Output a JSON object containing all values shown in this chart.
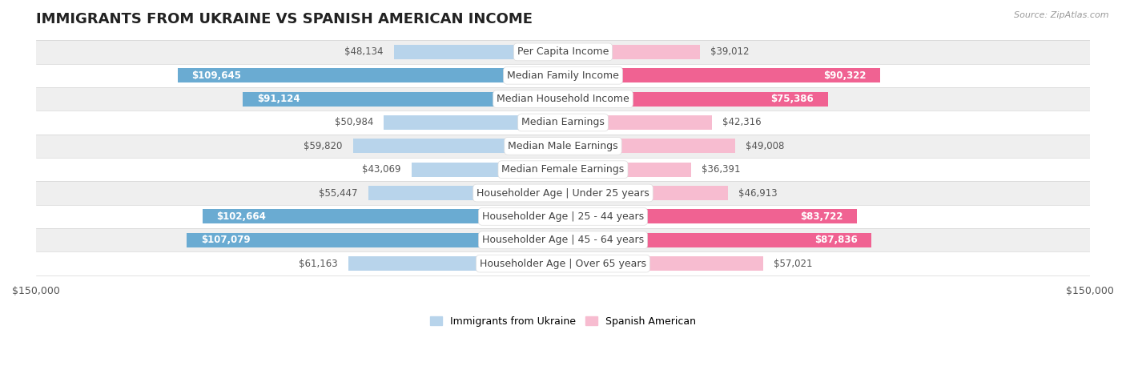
{
  "title": "IMMIGRANTS FROM UKRAINE VS SPANISH AMERICAN INCOME",
  "source": "Source: ZipAtlas.com",
  "categories": [
    "Per Capita Income",
    "Median Family Income",
    "Median Household Income",
    "Median Earnings",
    "Median Male Earnings",
    "Median Female Earnings",
    "Householder Age | Under 25 years",
    "Householder Age | 25 - 44 years",
    "Householder Age | 45 - 64 years",
    "Householder Age | Over 65 years"
  ],
  "ukraine_values": [
    48134,
    109645,
    91124,
    50984,
    59820,
    43069,
    55447,
    102664,
    107079,
    61163
  ],
  "spanish_values": [
    39012,
    90322,
    75386,
    42316,
    49008,
    36391,
    46913,
    83722,
    87836,
    57021
  ],
  "ukraine_color_light": "#b8d4eb",
  "ukraine_color_dark": "#6aabd2",
  "spanish_color_light": "#f7bcd0",
  "spanish_color_dark": "#f06292",
  "ukraine_label": "Immigrants from Ukraine",
  "spanish_label": "Spanish American",
  "max_value": 150000,
  "bg_color": "#ffffff",
  "row_bg_alt": "#efefef",
  "title_fontsize": 13,
  "cat_fontsize": 9,
  "value_fontsize": 8.5,
  "axis_fontsize": 9,
  "source_fontsize": 8,
  "dark_threshold": 75000
}
